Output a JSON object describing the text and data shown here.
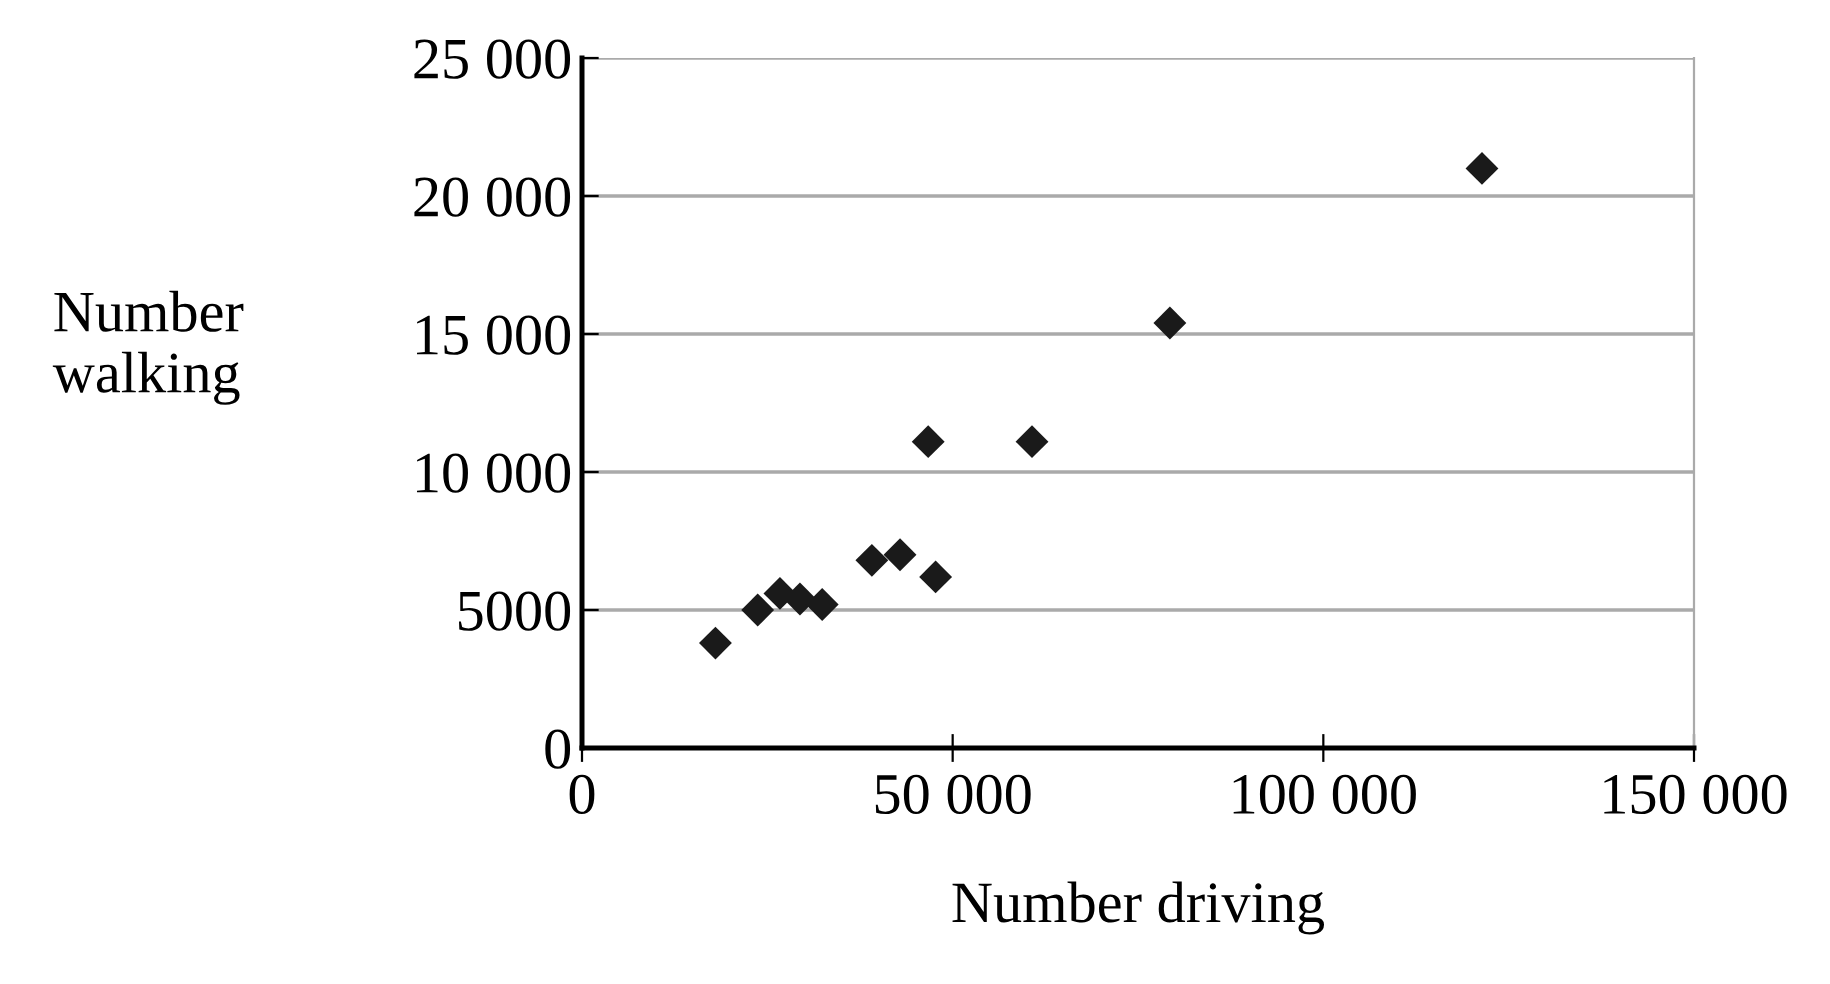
{
  "chart_data": {
    "type": "scatter",
    "xlabel": "Number driving",
    "ylabel": "Number\nwalking",
    "x": [
      18000,
      23700,
      26700,
      29400,
      32400,
      39100,
      42900,
      47700,
      46700,
      60700,
      79300,
      121400
    ],
    "values": [
      3800,
      5000,
      5600,
      5400,
      5200,
      6800,
      7000,
      6200,
      11100,
      11100,
      15400,
      21000
    ],
    "color": "#1a1a1a",
    "marker": "diamond",
    "xlim": [
      0,
      150000
    ],
    "xticks": [
      0,
      {
        "value": 50000,
        "label": "50 000"
      },
      {
        "value": 100000,
        "label": "100 000"
      },
      {
        "value": 150000,
        "label": "150 000"
      }
    ],
    "ylim": [
      0,
      25000
    ],
    "yticks": [
      0,
      5000,
      {
        "value": 10000,
        "label": "10 000"
      },
      {
        "value": 15000,
        "label": "15 000"
      },
      {
        "value": 20000,
        "label": "20 000"
      },
      {
        "value": 25000,
        "label": "25 000"
      }
    ],
    "grid": "y"
  }
}
